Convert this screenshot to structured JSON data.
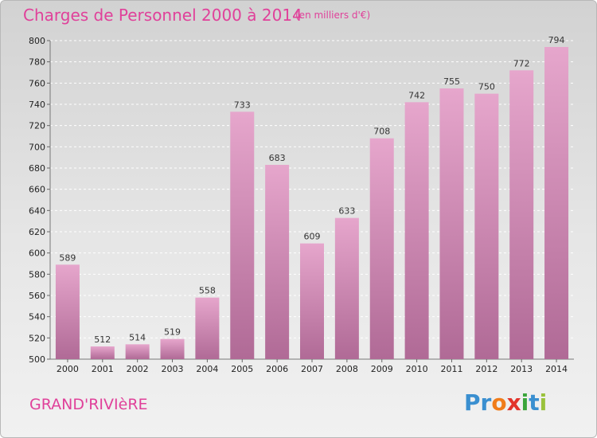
{
  "header": {
    "title": "Charges de Personnel 2000 à 2014",
    "unit": "(en milliers d'€)"
  },
  "footer": {
    "commune": "GRAND'RIVIèRE",
    "logo_letters": [
      {
        "char": "P",
        "color": "#3a8fd0"
      },
      {
        "char": "r",
        "color": "#3a8fd0"
      },
      {
        "char": "o",
        "color": "#f07c1a"
      },
      {
        "char": "x",
        "color": "#e2332a"
      },
      {
        "char": "i",
        "color": "#3aa53a"
      },
      {
        "char": "t",
        "color": "#3a8fd0"
      },
      {
        "char": "i",
        "color": "#9ac23c"
      }
    ]
  },
  "colors": {
    "bar_top": "#e6a6cc",
    "bar_bottom": "#b06a96",
    "accent": "#e0419a"
  },
  "chart_data": {
    "type": "bar",
    "title": "Charges de Personnel 2000 à 2014",
    "categories": [
      "2000",
      "2001",
      "2002",
      "2003",
      "2004",
      "2005",
      "2006",
      "2007",
      "2008",
      "2009",
      "2010",
      "2011",
      "2012",
      "2013",
      "2014"
    ],
    "values": [
      589,
      512,
      514,
      519,
      558,
      733,
      683,
      609,
      633,
      708,
      742,
      755,
      750,
      772,
      794
    ],
    "ylim": [
      500,
      800
    ],
    "yticks": [
      500,
      520,
      540,
      560,
      580,
      600,
      620,
      640,
      660,
      680,
      700,
      720,
      740,
      760,
      780,
      800
    ],
    "grid": true,
    "xlabel": "",
    "ylabel": ""
  }
}
